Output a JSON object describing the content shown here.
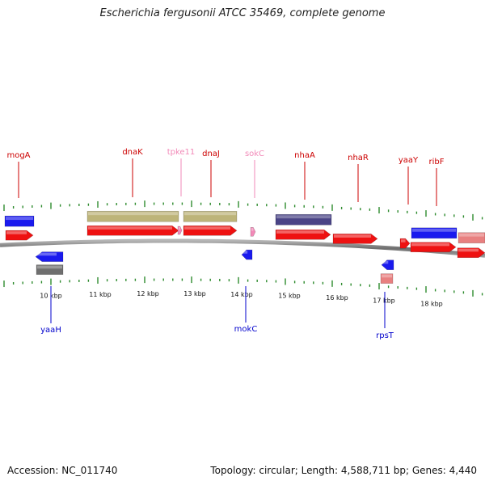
{
  "title": "Escherichia fergusonii ATCC 35469, complete genome",
  "accession": "Accession: NC_011740",
  "summary": "Topology: circular; Length: 4,588,711 bp; Genes: 4,440",
  "colors": {
    "backbone": "#8a8a8a",
    "tick": "#2e8b2e",
    "gene_red": "#ee1111",
    "gene_blue": "#1a1aee",
    "gene_pink": "#f28ab8",
    "gene_salmon": "#e88080",
    "feat_olive": "#bdb479",
    "feat_purple": "#4a4486",
    "feat_gray": "#6f6f6f",
    "label_red": "#cc0000",
    "label_blue": "#0000cc",
    "label_pink": "#f28ab8"
  },
  "kbp_ticks": [
    "10 kbp",
    "11 kbp",
    "12 kbp",
    "13 kbp",
    "14 kbp",
    "15 kbp",
    "16 kbp",
    "17 kbp",
    "18 kbp"
  ],
  "gene_labels": {
    "mogA": "mogA",
    "dnaK": "dnaK",
    "tpke11": "tpke11",
    "dnaJ": "dnaJ",
    "sokC": "sokC",
    "nhaA": "nhaA",
    "nhaR": "nhaR",
    "yaaY": "yaaY",
    "ribF": "ribF",
    "yaaH": "yaaH",
    "mokC": "mokC",
    "rpsT": "rpsT"
  }
}
